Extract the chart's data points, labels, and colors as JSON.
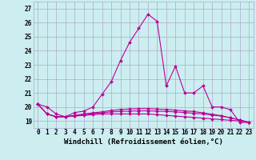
{
  "xlabel": "Windchill (Refroidissement éolien,°C)",
  "background_color": "#cceef0",
  "grid_color": "#aaaacc",
  "line_color": "#bb0099",
  "x": [
    0,
    1,
    2,
    3,
    4,
    5,
    6,
    7,
    8,
    9,
    10,
    11,
    12,
    13,
    14,
    15,
    16,
    17,
    18,
    19,
    20,
    21,
    22,
    23
  ],
  "line1": [
    20.2,
    20.0,
    19.5,
    19.3,
    19.6,
    19.7,
    20.0,
    20.9,
    21.8,
    23.3,
    24.6,
    25.6,
    26.6,
    26.1,
    21.5,
    22.9,
    21.0,
    21.0,
    21.5,
    20.0,
    20.0,
    19.8,
    18.9,
    18.9
  ],
  "line2": [
    20.2,
    19.5,
    19.3,
    19.3,
    19.35,
    19.4,
    19.45,
    19.5,
    19.5,
    19.5,
    19.5,
    19.5,
    19.5,
    19.45,
    19.4,
    19.35,
    19.3,
    19.25,
    19.2,
    19.15,
    19.1,
    19.05,
    19.0,
    18.9
  ],
  "line3": [
    20.2,
    19.5,
    19.3,
    19.3,
    19.38,
    19.45,
    19.52,
    19.58,
    19.65,
    19.68,
    19.7,
    19.72,
    19.72,
    19.7,
    19.68,
    19.65,
    19.6,
    19.55,
    19.5,
    19.42,
    19.35,
    19.22,
    19.08,
    18.9
  ],
  "line4": [
    20.2,
    19.5,
    19.3,
    19.3,
    19.4,
    19.5,
    19.58,
    19.65,
    19.75,
    19.82,
    19.85,
    19.88,
    19.88,
    19.85,
    19.82,
    19.78,
    19.72,
    19.67,
    19.58,
    19.48,
    19.38,
    19.22,
    19.08,
    18.9
  ],
  "ylim": [
    18.5,
    27.5
  ],
  "xlim": [
    -0.5,
    23.5
  ],
  "yticks": [
    19,
    20,
    21,
    22,
    23,
    24,
    25,
    26,
    27
  ],
  "xticks": [
    0,
    1,
    2,
    3,
    4,
    5,
    6,
    7,
    8,
    9,
    10,
    11,
    12,
    13,
    14,
    15,
    16,
    17,
    18,
    19,
    20,
    21,
    22,
    23
  ],
  "xlabel_fontsize": 6.5,
  "tick_fontsize": 5.5,
  "markersize": 2.0,
  "linewidth": 0.8
}
